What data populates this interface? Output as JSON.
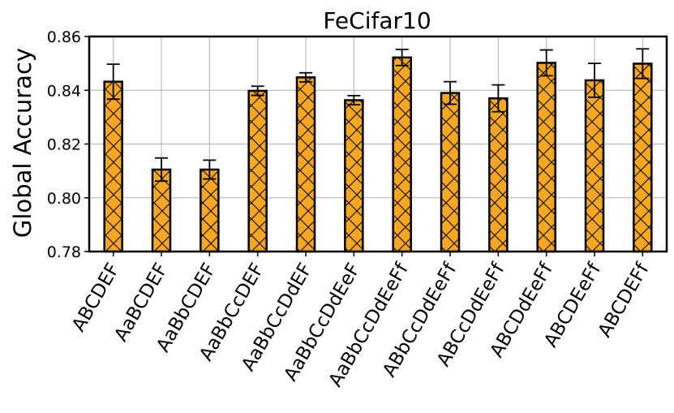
{
  "chart_data": {
    "type": "bar",
    "title": "FeCifar10",
    "xlabel": "",
    "ylabel": "Global Accuracy",
    "ylim": [
      0.78,
      0.86
    ],
    "yticks": [
      "0.78",
      "0.80",
      "0.82",
      "0.84",
      "0.86"
    ],
    "ytick_values": [
      0.78,
      0.8,
      0.82,
      0.84,
      0.86
    ],
    "grid": true,
    "bar_color": "#f5a623",
    "edge_color": "#000000",
    "hatch": "x",
    "categories": [
      "ABCDEF",
      "AaBCDEF",
      "AaBbCDEF",
      "AaBbCcDEF",
      "AaBbCcDdEF",
      "AaBbCcDdEeF",
      "AaBbCcDdEeFf",
      "ABbCcDdEeFf",
      "ABCcDdEeFf",
      "ABCDdEeFf",
      "ABCDEeFf",
      "ABCDEFf"
    ],
    "values": [
      0.8432,
      0.8105,
      0.8105,
      0.8398,
      0.8448,
      0.8363,
      0.8522,
      0.839,
      0.837,
      0.8502,
      0.8437,
      0.8499
    ],
    "errors": [
      0.0065,
      0.0043,
      0.0035,
      0.0017,
      0.0017,
      0.0017,
      0.003,
      0.0042,
      0.005,
      0.0048,
      0.0063,
      0.0055
    ]
  }
}
